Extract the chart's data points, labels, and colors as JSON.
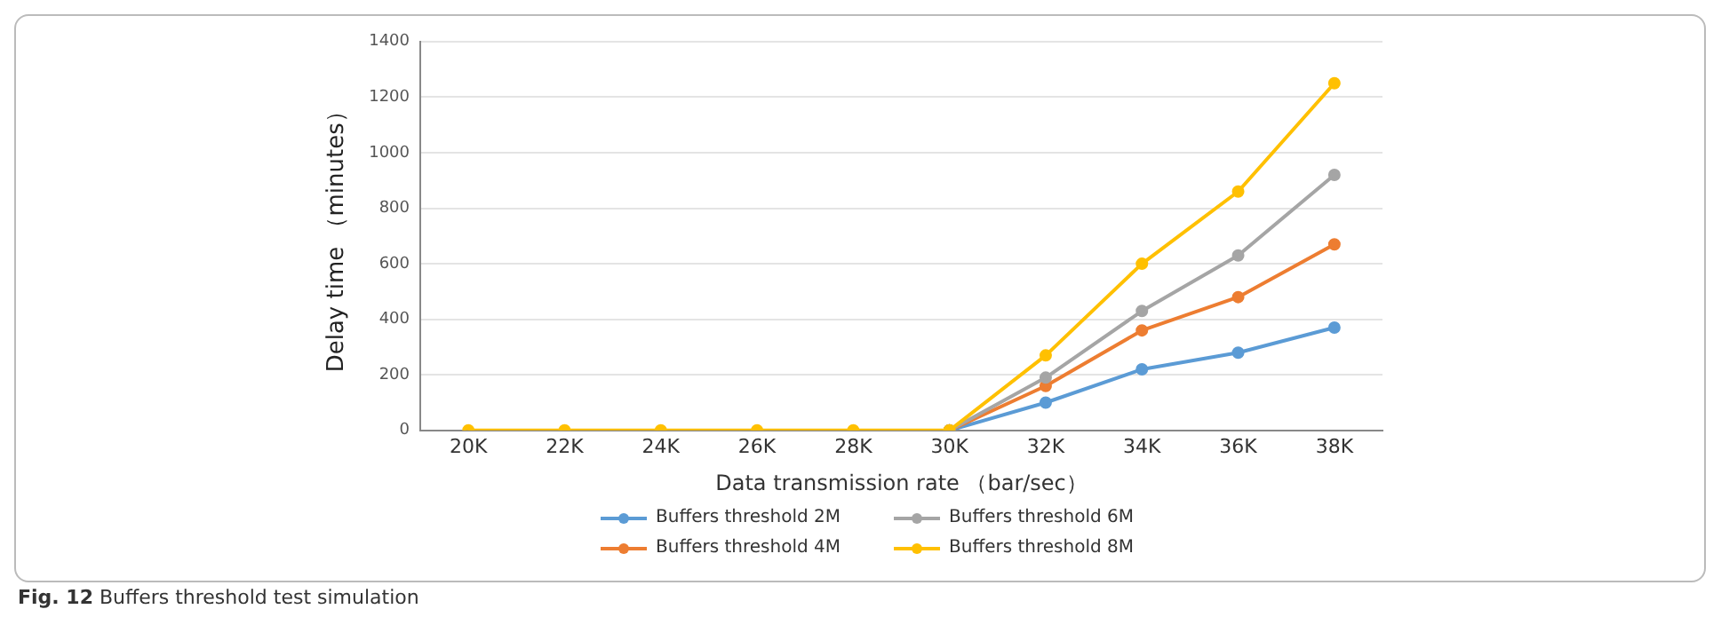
{
  "chart_data": {
    "type": "line",
    "xlabel": "Data transmission rate （bar/sec）",
    "ylabel": "Delay time （minutes）",
    "annotations": [
      "Fig. 12 Buffers threshold test simulation"
    ],
    "categories": [
      "20K",
      "22K",
      "24K",
      "26K",
      "28K",
      "30K",
      "32K",
      "34K",
      "36K",
      "38K"
    ],
    "series": [
      {
        "name": "Buffers threshold 2M",
        "color": "#5b9bd5",
        "values": [
          null,
          null,
          null,
          null,
          null,
          0,
          100,
          220,
          280,
          370
        ]
      },
      {
        "name": "Buffers threshold 4M",
        "color": "#ed7d31",
        "values": [
          null,
          null,
          null,
          null,
          null,
          0,
          160,
          360,
          480,
          670
        ]
      },
      {
        "name": "Buffers threshold 6M",
        "color": "#a5a5a5",
        "values": [
          null,
          null,
          null,
          null,
          null,
          0,
          190,
          430,
          630,
          920
        ]
      },
      {
        "name": "Buffers threshold 8M",
        "color": "#ffc000",
        "values": [
          0,
          0,
          0,
          0,
          0,
          0,
          270,
          600,
          860,
          1250
        ]
      }
    ],
    "ylim": [
      0,
      1400
    ],
    "yticks": [
      0,
      200,
      400,
      600,
      800,
      1000,
      1200,
      1400
    ],
    "grid": "y",
    "legend": "bottom",
    "marker": "circle",
    "line_style": "solid"
  }
}
